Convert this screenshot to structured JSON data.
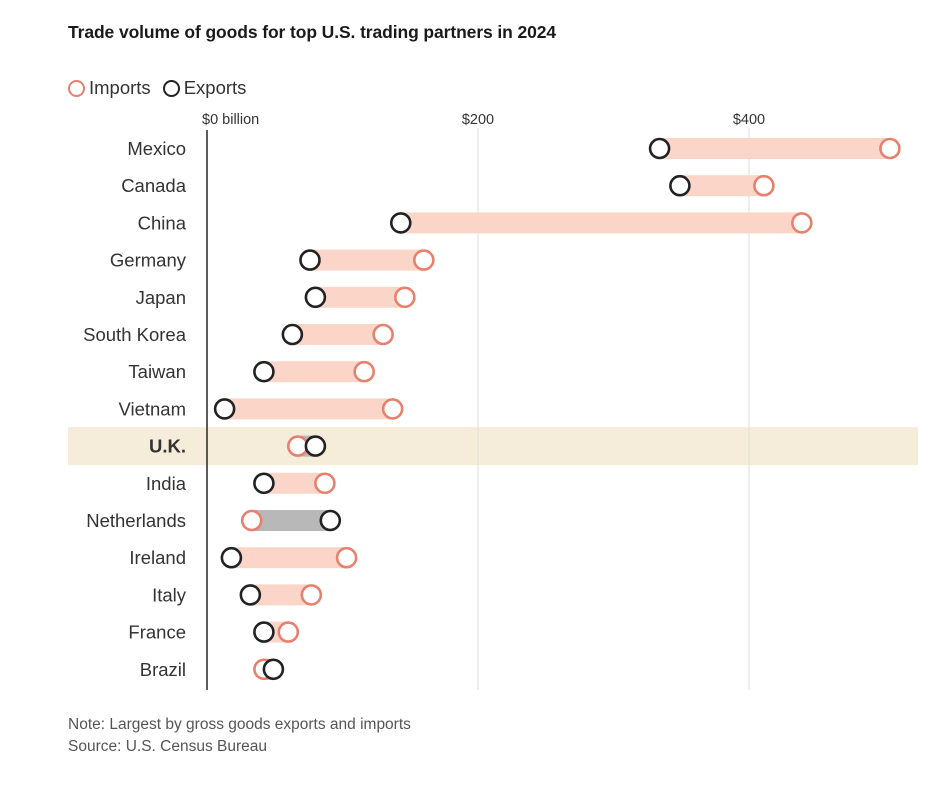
{
  "chart_data": {
    "type": "dumbbell",
    "title": "Trade volume of goods for top U.S. trading partners in 2024",
    "legend": [
      {
        "name": "Imports",
        "color": "#e8806e"
      },
      {
        "name": "Exports",
        "color": "#222222"
      }
    ],
    "x_ticks": [
      {
        "value": 0,
        "label": "$0 billion"
      },
      {
        "value": 200,
        "label": "$200"
      },
      {
        "value": 400,
        "label": "$400"
      }
    ],
    "xlim": [
      0,
      510
    ],
    "highlight_category": "U.K.",
    "categories": [
      "Mexico",
      "Canada",
      "China",
      "Germany",
      "Japan",
      "South Korea",
      "Taiwan",
      "Vietnam",
      "U.K.",
      "India",
      "Netherlands",
      "Ireland",
      "Italy",
      "France",
      "Brazil"
    ],
    "series": [
      {
        "name": "Imports",
        "values": [
          504,
          411,
          439,
          160,
          146,
          130,
          116,
          137,
          67,
          87,
          33,
          103,
          77,
          60,
          42
        ]
      },
      {
        "name": "Exports",
        "values": [
          334,
          349,
          143,
          76,
          80,
          63,
          42,
          13,
          80,
          42,
          91,
          18,
          32,
          42,
          49
        ]
      }
    ],
    "colors": {
      "imports": "#e8806e",
      "exports": "#222222",
      "bar_import_greater": "#fbd6c8",
      "bar_export_greater": "#b8b8b8",
      "highlight_row": "#f5ecd9",
      "gridline": "#e2e2e2",
      "axis": "#333333"
    }
  },
  "note": "Note: Largest by gross goods exports and imports",
  "source": "Source: U.S. Census Bureau"
}
